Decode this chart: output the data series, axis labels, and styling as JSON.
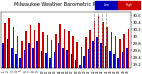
{
  "title": "Milwaukee Weather Barometric Pressure",
  "subtitle": "Daily High/Low",
  "high_values": [
    30.38,
    30.52,
    30.28,
    30.02,
    29.88,
    30.15,
    30.32,
    30.18,
    30.38,
    30.12,
    30.05,
    29.9,
    30.08,
    30.35,
    30.22,
    30.15,
    30.02,
    29.85,
    29.7,
    29.98,
    30.18,
    30.45,
    30.58,
    30.42,
    30.28,
    30.12,
    30.02,
    29.92,
    30.08,
    30.22
  ],
  "low_values": [
    29.82,
    29.92,
    29.68,
    29.48,
    29.38,
    29.62,
    29.82,
    29.68,
    29.88,
    29.58,
    29.52,
    29.38,
    29.55,
    29.82,
    29.68,
    29.62,
    29.48,
    29.32,
    29.18,
    29.45,
    29.65,
    29.88,
    29.98,
    29.82,
    29.72,
    29.58,
    29.48,
    29.38,
    29.55,
    29.68
  ],
  "x_labels": [
    "1",
    "2",
    "3",
    "4",
    "5",
    "6",
    "7",
    "8",
    "9",
    "10",
    "11",
    "12",
    "13",
    "14",
    "15",
    "16",
    "17",
    "18",
    "19",
    "20",
    "21",
    "22",
    "23",
    "24",
    "25",
    "26",
    "27",
    "28",
    "29",
    "30"
  ],
  "ylim": [
    29.1,
    30.7
  ],
  "yticks": [
    29.2,
    29.4,
    29.6,
    29.8,
    30.0,
    30.2,
    30.4,
    30.6
  ],
  "ytick_labels": [
    "29.2",
    "29.4",
    "29.6",
    "29.8",
    "30.",
    "30.2",
    "30.4",
    "30.6"
  ],
  "high_color": "#cc0000",
  "low_color": "#0000cc",
  "legend_high_color": "#cc0000",
  "legend_low_color": "#0000bb",
  "bg_color": "#ffffff",
  "highlight_indices": [
    21,
    22,
    23,
    24
  ],
  "title_fontsize": 3.5,
  "bar_width": 0.38
}
